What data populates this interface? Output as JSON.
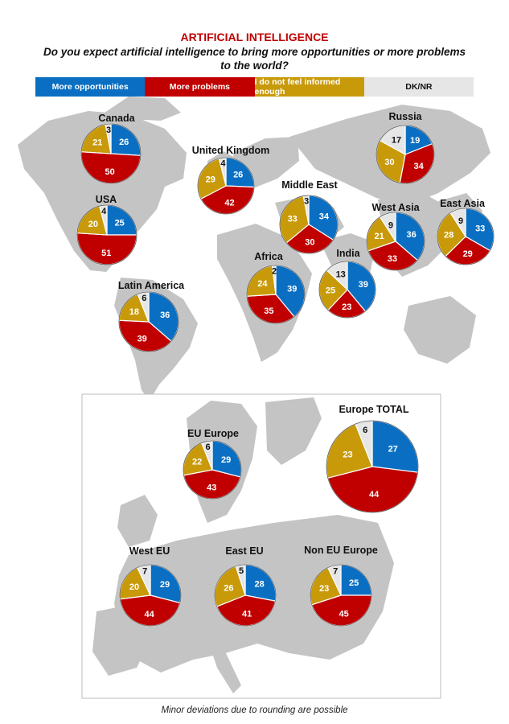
{
  "header": {
    "title": "ARTIFICIAL INTELLIGENCE",
    "subtitle": "Do you expect artificial intelligence to bring more opportunities or more problems to the world?"
  },
  "legend": [
    {
      "label": "More opportunities",
      "color": "#0a6fc2",
      "text_color": "#ffffff"
    },
    {
      "label": "More problems",
      "color": "#c00000",
      "text_color": "#ffffff"
    },
    {
      "label": "I do not feel informed enough",
      "color": "#c89a0a",
      "text_color": "#ffffff"
    },
    {
      "label": "DK/NR",
      "color": "#e6e6e6",
      "text_color": "#111111"
    }
  ],
  "footnote": "Minor deviations due to rounding are possible",
  "chart_data": {
    "type": "pie",
    "category_order": [
      "More opportunities",
      "More problems",
      "I do not feel informed enough",
      "DK/NR"
    ],
    "colors": [
      "#0a6fc2",
      "#c00000",
      "#c89a0a",
      "#e6e6e6"
    ],
    "pies": [
      {
        "name": "Canada",
        "values": [
          26,
          50,
          21,
          3
        ]
      },
      {
        "name": "United Kingdom",
        "values": [
          26,
          42,
          29,
          4
        ]
      },
      {
        "name": "USA",
        "values": [
          25,
          51,
          20,
          4
        ]
      },
      {
        "name": "Middle East",
        "values": [
          34,
          30,
          33,
          3
        ]
      },
      {
        "name": "Russia",
        "values": [
          19,
          34,
          30,
          17
        ]
      },
      {
        "name": "West Asia",
        "values": [
          36,
          33,
          21,
          9
        ]
      },
      {
        "name": "East Asia",
        "values": [
          33,
          29,
          28,
          9
        ]
      },
      {
        "name": "Africa",
        "values": [
          39,
          35,
          24,
          2
        ]
      },
      {
        "name": "India",
        "values": [
          39,
          23,
          25,
          13
        ]
      },
      {
        "name": "Latin America",
        "values": [
          36,
          39,
          18,
          6
        ]
      },
      {
        "name": "EU Europe",
        "values": [
          29,
          43,
          22,
          6
        ]
      },
      {
        "name": "Europe TOTAL",
        "values": [
          27,
          44,
          23,
          6
        ]
      },
      {
        "name": "West EU",
        "values": [
          29,
          44,
          20,
          7
        ]
      },
      {
        "name": "East EU",
        "values": [
          28,
          41,
          26,
          5
        ]
      },
      {
        "name": "Non EU Europe",
        "values": [
          25,
          45,
          23,
          7
        ]
      }
    ]
  }
}
